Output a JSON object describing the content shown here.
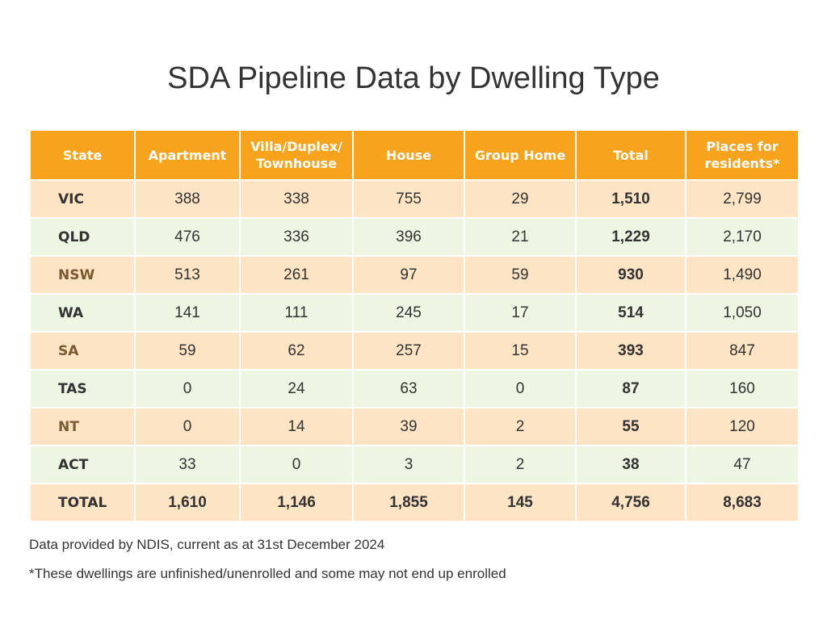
{
  "title": "SDA Pipeline Data by Dwelling Type",
  "table": {
    "header": [
      "State",
      "Apartment",
      "Villa/Duplex/ Townhouse",
      "House",
      "Group Home",
      "Total",
      "Places for residents*"
    ],
    "rows": [
      [
        "VIC",
        "388",
        "338",
        "755",
        "29",
        "1,510",
        "2,799"
      ],
      [
        "QLD",
        "476",
        "336",
        "396",
        "21",
        "1,229",
        "2,170"
      ],
      [
        "NSW",
        "513",
        "261",
        "97",
        "59",
        "930",
        "1,490"
      ],
      [
        "WA",
        "141",
        "111",
        "245",
        "17",
        "514",
        "1,050"
      ],
      [
        "SA",
        "59",
        "62",
        "257",
        "15",
        "393",
        "847"
      ],
      [
        "TAS",
        "0",
        "24",
        "63",
        "0",
        "87",
        "160"
      ],
      [
        "NT",
        "0",
        "14",
        "39",
        "2",
        "55",
        "120"
      ],
      [
        "ACT",
        "33",
        "0",
        "3",
        "2",
        "38",
        "47"
      ],
      [
        "TOTAL",
        "1,610",
        "1,146",
        "1,855",
        "145",
        "4,756",
        "8,683"
      ]
    ]
  },
  "notes": [
    "Data provided by NDIS, current as at 31st December 2024",
    "*These dwellings are unfinished/unenrolled and some may not end up enrolled"
  ]
}
